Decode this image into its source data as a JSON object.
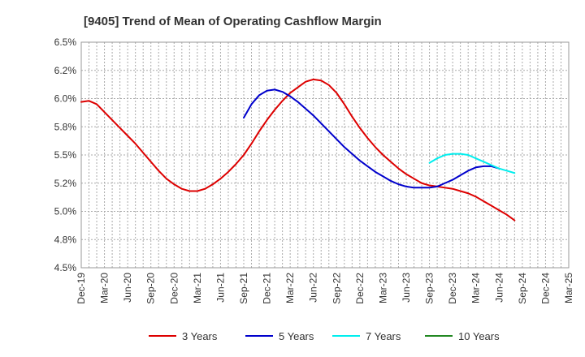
{
  "chart_data": {
    "type": "line",
    "title": "[9405]  Trend of Mean of Operating Cashflow Margin",
    "xlabel": "",
    "ylabel": "",
    "ylim": [
      4.5,
      6.5
    ],
    "y_ticks": [
      "4.5%",
      "4.8%",
      "5.0%",
      "5.2%",
      "5.5%",
      "5.8%",
      "6.0%",
      "6.2%",
      "6.5%"
    ],
    "x_ticks": [
      "Dec-19",
      "Mar-20",
      "Jun-20",
      "Sep-20",
      "Dec-20",
      "Mar-21",
      "Jun-21",
      "Sep-21",
      "Dec-21",
      "Mar-22",
      "Jun-22",
      "Sep-22",
      "Dec-22",
      "Mar-23",
      "Jun-23",
      "Sep-23",
      "Dec-23",
      "Mar-24",
      "Jun-24",
      "Sep-24",
      "Dec-24",
      "Mar-25"
    ],
    "grid": true,
    "legend_position": "bottom",
    "series": [
      {
        "name": "3 Years",
        "color": "#dd0000",
        "start_month_index": 0,
        "values": [
          5.97,
          5.98,
          5.95,
          5.88,
          5.81,
          5.74,
          5.67,
          5.6,
          5.52,
          5.44,
          5.36,
          5.29,
          5.24,
          5.2,
          5.18,
          5.18,
          5.2,
          5.24,
          5.29,
          5.35,
          5.42,
          5.5,
          5.6,
          5.71,
          5.81,
          5.9,
          5.98,
          6.05,
          6.1,
          6.15,
          6.17,
          6.16,
          6.12,
          6.05,
          5.95,
          5.84,
          5.74,
          5.65,
          5.57,
          5.5,
          5.44,
          5.38,
          5.33,
          5.29,
          5.25,
          5.23,
          5.22,
          5.21,
          5.2,
          5.18,
          5.16,
          5.13,
          5.09,
          5.05,
          5.01,
          4.97,
          4.92
        ]
      },
      {
        "name": "5 Years",
        "color": "#0000cc",
        "start_month_index": 21,
        "values": [
          5.83,
          5.95,
          6.03,
          6.07,
          6.08,
          6.06,
          6.02,
          5.97,
          5.91,
          5.85,
          5.78,
          5.71,
          5.64,
          5.57,
          5.51,
          5.45,
          5.4,
          5.35,
          5.31,
          5.27,
          5.24,
          5.22,
          5.21,
          5.21,
          5.21,
          5.22,
          5.25,
          5.28,
          5.32,
          5.36,
          5.39,
          5.4,
          5.4,
          5.38
        ]
      },
      {
        "name": "7 Years",
        "color": "#00eeee",
        "start_month_index": 45,
        "values": [
          5.43,
          5.47,
          5.5,
          5.51,
          5.51,
          5.5,
          5.47,
          5.44,
          5.41,
          5.38,
          5.36,
          5.34
        ]
      },
      {
        "name": "10 Years",
        "color": "#228822",
        "start_month_index": 0,
        "values": []
      }
    ]
  }
}
